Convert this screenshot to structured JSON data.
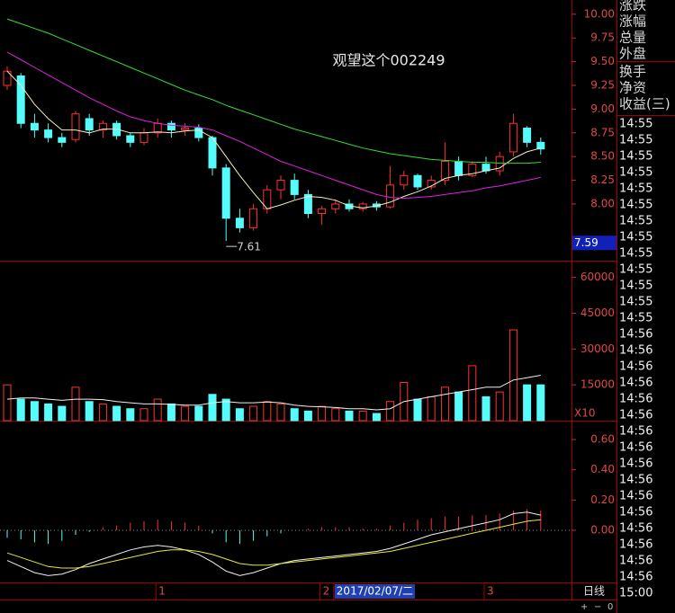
{
  "chart_data": [
    {
      "type": "candlestick",
      "title": "观望这个002249",
      "open": [
        9.25,
        9.35,
        8.85,
        8.78,
        8.7,
        8.68,
        8.9,
        8.78,
        8.85,
        8.72,
        8.65,
        8.75,
        8.85,
        8.78,
        8.8,
        8.7,
        8.38,
        7.85,
        7.75,
        7.95,
        8.15,
        8.25,
        8.1,
        7.9,
        7.95,
        8.0,
        7.95,
        8.0,
        7.97,
        8.2,
        8.3,
        8.18,
        8.25,
        8.45,
        8.3,
        8.42,
        8.35,
        8.55,
        8.8,
        8.65
      ],
      "high": [
        9.45,
        9.38,
        8.95,
        8.85,
        8.75,
        8.98,
        8.95,
        8.88,
        8.88,
        8.75,
        8.8,
        8.9,
        8.88,
        8.85,
        8.84,
        8.72,
        8.42,
        7.95,
        8.0,
        8.2,
        8.3,
        8.32,
        8.15,
        7.98,
        8.05,
        8.05,
        8.02,
        8.03,
        8.4,
        8.35,
        8.32,
        8.3,
        8.65,
        8.5,
        8.45,
        8.5,
        8.55,
        8.95,
        8.82,
        8.7
      ],
      "low": [
        9.2,
        8.8,
        8.7,
        8.65,
        8.6,
        8.65,
        8.72,
        8.7,
        8.68,
        8.6,
        8.62,
        8.7,
        8.7,
        8.72,
        8.66,
        8.3,
        7.61,
        7.7,
        7.72,
        7.9,
        8.05,
        8.05,
        7.85,
        7.78,
        7.9,
        7.92,
        7.92,
        7.93,
        7.95,
        8.15,
        8.15,
        8.15,
        8.2,
        8.25,
        8.28,
        8.32,
        8.3,
        8.5,
        8.6,
        8.52
      ],
      "close": [
        9.4,
        8.85,
        8.78,
        8.7,
        8.65,
        8.95,
        8.78,
        8.85,
        8.72,
        8.65,
        8.75,
        8.85,
        8.78,
        8.8,
        8.7,
        8.38,
        7.85,
        7.75,
        7.95,
        8.15,
        8.25,
        8.1,
        7.9,
        7.95,
        8.0,
        7.95,
        8.0,
        7.97,
        8.2,
        8.3,
        8.18,
        8.25,
        8.45,
        8.3,
        8.42,
        8.35,
        8.5,
        8.85,
        8.65,
        8.58
      ],
      "up_color": "#ff3232",
      "down_color": "#54fcfc",
      "series": [
        {
          "color": "#f0f0c0",
          "values": [
            9.4,
            9.25,
            9.05,
            8.9,
            8.78,
            8.78,
            8.75,
            8.79,
            8.79,
            8.75,
            8.75,
            8.76,
            8.75,
            8.77,
            8.78,
            8.7,
            8.5,
            8.3,
            8.12,
            7.95,
            7.99,
            8.04,
            8.08,
            8.07,
            8.04,
            7.98,
            7.96,
            7.98,
            8.02,
            8.08,
            8.13,
            8.19,
            8.27,
            8.3,
            8.32,
            8.35,
            8.38,
            8.48,
            8.55,
            8.59
          ]
        },
        {
          "color": "#e020e0",
          "values": [
            9.6,
            9.52,
            9.44,
            9.36,
            9.28,
            9.2,
            9.12,
            9.05,
            8.98,
            8.92,
            8.88,
            8.85,
            8.83,
            8.82,
            8.81,
            8.78,
            8.72,
            8.66,
            8.59,
            8.52,
            8.45,
            8.4,
            8.35,
            8.3,
            8.25,
            8.2,
            8.15,
            8.1,
            8.07,
            8.06,
            8.07,
            8.08,
            8.1,
            8.12,
            8.14,
            8.17,
            8.19,
            8.22,
            8.25,
            8.28
          ]
        },
        {
          "color": "#30e030",
          "values": [
            9.95,
            9.9,
            9.85,
            9.8,
            9.74,
            9.68,
            9.62,
            9.56,
            9.5,
            9.44,
            9.38,
            9.32,
            9.26,
            9.2,
            9.15,
            9.1,
            9.04,
            8.99,
            8.94,
            8.89,
            8.84,
            8.79,
            8.75,
            8.71,
            8.67,
            8.63,
            8.59,
            8.56,
            8.53,
            8.51,
            8.49,
            8.47,
            8.46,
            8.45,
            8.44,
            8.44,
            8.43,
            8.43,
            8.43,
            8.44
          ]
        }
      ],
      "ylim": [
        7.403,
        10.15
      ],
      "yticks": [
        {
          "value": 8,
          "label": "8.00"
        },
        {
          "value": 8.25,
          "label": "8.25"
        },
        {
          "value": 8.5,
          "label": "8.50"
        },
        {
          "value": 8.75,
          "label": "8.75"
        },
        {
          "value": 9,
          "label": "9.00"
        },
        {
          "value": 9.25,
          "label": "9.25"
        },
        {
          "value": 9.5,
          "label": "9.50"
        },
        {
          "value": 9.75,
          "label": "9.75"
        },
        {
          "value": 10,
          "label": "10.00"
        }
      ],
      "cursor_price": 7.59
    },
    {
      "type": "bar",
      "unit_label": "X10",
      "values": [
        15000,
        9000,
        8000,
        7000,
        6000,
        14000,
        8000,
        7000,
        6000,
        5000,
        5000,
        9000,
        7000,
        6000,
        6000,
        11000,
        9000,
        5000,
        6000,
        8000,
        7000,
        5000,
        4000,
        6000,
        5000,
        4000,
        4000,
        3000,
        8000,
        16000,
        9000,
        10000,
        14000,
        12000,
        23000,
        10000,
        12000,
        38000,
        15000,
        15000
      ],
      "series": [
        {
          "color": "#f0f0f0",
          "values": [
            9000,
            9500,
            9500,
            9000,
            8500,
            9000,
            9000,
            8800,
            8000,
            7500,
            7000,
            7000,
            6800,
            6500,
            6500,
            7500,
            8000,
            7500,
            7500,
            7800,
            7500,
            6500,
            6000,
            5800,
            5500,
            5000,
            5000,
            4500,
            5000,
            8000,
            9000,
            10000,
            11000,
            12000,
            13000,
            14000,
            14000,
            17000,
            18000,
            19000
          ]
        }
      ],
      "ylim": [
        0,
        67000
      ],
      "yticks": [
        15000,
        30000,
        45000,
        60000
      ]
    },
    {
      "type": "macd",
      "categories": [
        null,
        null,
        null,
        null,
        null,
        null,
        null,
        null,
        null,
        null,
        null,
        "1",
        null,
        null,
        null,
        null,
        null,
        null,
        null,
        null,
        null,
        null,
        null,
        "2",
        "2017/02/07/二",
        null,
        null,
        null,
        null,
        null,
        null,
        null,
        null,
        null,
        null,
        "3",
        null,
        null,
        null,
        null
      ],
      "values": [
        -0.05,
        -0.06,
        -0.08,
        -0.09,
        -0.07,
        -0.03,
        -0.01,
        0.02,
        0.03,
        0.05,
        0.06,
        0.07,
        0.06,
        0.05,
        0.03,
        -0.02,
        -0.08,
        -0.09,
        -0.07,
        -0.04,
        -0.02,
        0.0,
        0.01,
        0.02,
        0.02,
        0.02,
        0.01,
        0.01,
        0.03,
        0.05,
        0.07,
        0.08,
        0.09,
        0.09,
        0.1,
        0.1,
        0.11,
        0.13,
        0.14,
        0.13
      ],
      "up_color": "#ff3232",
      "down_color": "#54fcfc",
      "series": [
        {
          "color": "#f0f0f0",
          "values": [
            -0.2,
            -0.24,
            -0.28,
            -0.3,
            -0.29,
            -0.26,
            -0.22,
            -0.19,
            -0.16,
            -0.13,
            -0.11,
            -0.1,
            -0.11,
            -0.13,
            -0.16,
            -0.21,
            -0.27,
            -0.3,
            -0.28,
            -0.25,
            -0.22,
            -0.2,
            -0.19,
            -0.18,
            -0.17,
            -0.16,
            -0.15,
            -0.14,
            -0.12,
            -0.09,
            -0.06,
            -0.03,
            -0.01,
            0.01,
            0.03,
            0.05,
            0.07,
            0.11,
            0.12,
            0.1
          ]
        },
        {
          "color": "#e8e830",
          "values": [
            -0.15,
            -0.18,
            -0.21,
            -0.24,
            -0.25,
            -0.25,
            -0.24,
            -0.22,
            -0.2,
            -0.18,
            -0.16,
            -0.14,
            -0.13,
            -0.13,
            -0.14,
            -0.16,
            -0.19,
            -0.22,
            -0.23,
            -0.23,
            -0.22,
            -0.21,
            -0.2,
            -0.19,
            -0.18,
            -0.17,
            -0.16,
            -0.15,
            -0.14,
            -0.12,
            -0.1,
            -0.08,
            -0.06,
            -0.04,
            -0.02,
            0.0,
            0.02,
            0.04,
            0.06,
            0.07
          ]
        }
      ],
      "ylim": [
        -0.345,
        0.725
      ],
      "yticks": [
        {
          "value": 0,
          "label": "0.00"
        },
        {
          "value": 0.2,
          "label": "0.20"
        },
        {
          "value": 0.4,
          "label": "0.40"
        },
        {
          "value": 0.6,
          "label": "0.60"
        }
      ]
    }
  ],
  "side_panel": {
    "labels": [
      "涨跌",
      "涨幅",
      "总量",
      "外盘",
      "换手",
      "净资",
      "收益(三)"
    ],
    "times": [
      "14:55",
      "14:55",
      "14:55",
      "14:55",
      "14:55",
      "14:55",
      "14:55",
      "14:55",
      "14:55",
      "14:55",
      "14:55",
      "14:55",
      "14:55",
      "14:56",
      "14:56",
      "14:56",
      "14:56",
      "14:56",
      "14:56",
      "14:56",
      "14:56",
      "14:56",
      "14:56",
      "14:56",
      "14:56",
      "14:56",
      "14:56",
      "14:56",
      "14:56"
    ],
    "period": "日线",
    "close_time": "15:00",
    "buttons": [
      "+",
      "−",
      "0"
    ]
  }
}
